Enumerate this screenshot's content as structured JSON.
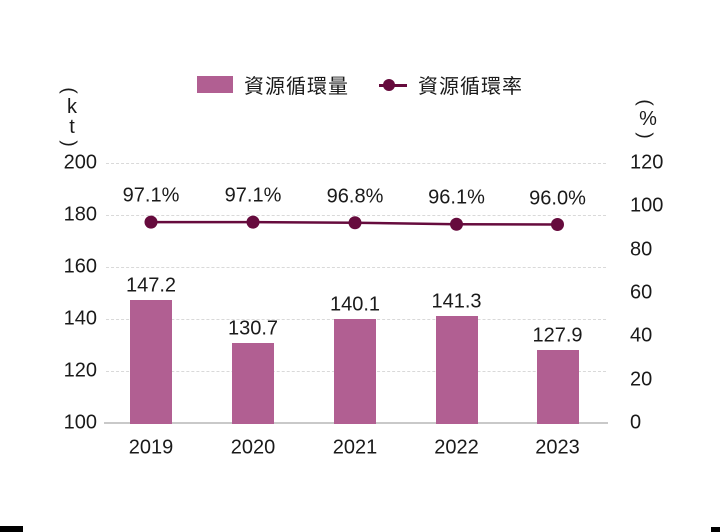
{
  "page": {
    "background": "#ffffff",
    "text_color": "#1a1a1a"
  },
  "legend": {
    "items": [
      {
        "label": "資源循環量",
        "marker": "bar-swatch",
        "color": "#b15f92"
      },
      {
        "label": "資源循環率",
        "marker": "line-dot",
        "color": "#660b3d"
      }
    ]
  },
  "chart_data": {
    "type": "combo",
    "title": "",
    "categories": [
      "2019",
      "2020",
      "2021",
      "2022",
      "2023"
    ],
    "series": [
      {
        "name": "資源循環量",
        "type": "bar",
        "axis": "left",
        "unit": "kt",
        "values": [
          147.2,
          130.7,
          140.1,
          141.3,
          127.9
        ],
        "labels": [
          "147.2",
          "130.7",
          "140.1",
          "141.3",
          "127.9"
        ],
        "color": "#b15f92"
      },
      {
        "name": "資源循環率",
        "type": "line",
        "axis": "right",
        "unit": "%",
        "values": [
          97.1,
          97.1,
          96.8,
          96.1,
          96.0
        ],
        "labels": [
          "97.1%",
          "97.1%",
          "96.8%",
          "96.1%",
          "96.0%"
        ],
        "color": "#660b3d"
      }
    ],
    "left_axis": {
      "unit_display": "(kt)",
      "ticks": [
        200,
        180,
        160,
        140,
        120,
        100
      ],
      "range": [
        100,
        200
      ]
    },
    "right_axis": {
      "unit_display": "(%)",
      "ticks": [
        120,
        100,
        80,
        60,
        40,
        20,
        0
      ],
      "range": [
        0,
        120
      ]
    },
    "grid": "dashed-horizontal",
    "legend_position": "top-center",
    "gridline_color": "#d9d9d9",
    "baseline_color": "#c9c9c9"
  },
  "artifacts": {
    "corner_mark_color": "#000000"
  }
}
